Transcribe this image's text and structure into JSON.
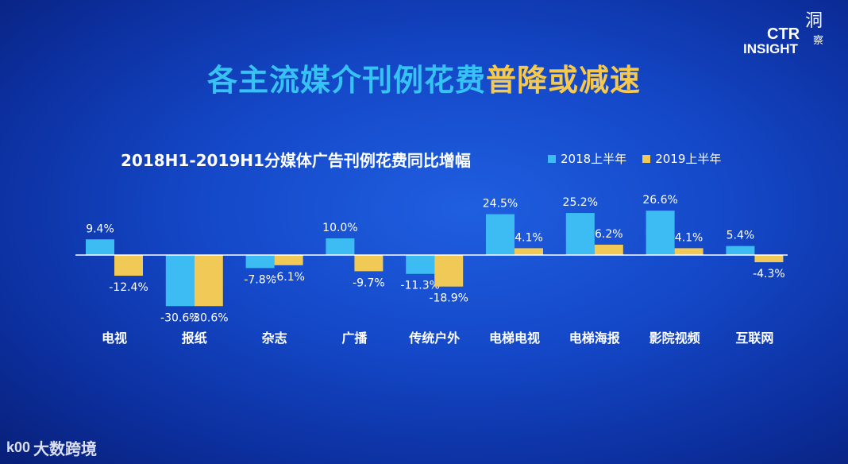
{
  "headline": {
    "part1": "各主流媒介刊例花费",
    "part2": "普降或减速"
  },
  "logo": {
    "line1": "CTR",
    "line2": "INSIGHT",
    "cn_top": "洞",
    "cn_bottom": "察"
  },
  "watermark": {
    "text": "大数跨境",
    "mark": "k00"
  },
  "colors": {
    "s2018": "#3cbcf2",
    "s2019": "#f1c957",
    "axis": "#ffffff"
  },
  "chart_data": {
    "type": "bar",
    "title": "2018H1-2019H1分媒体广告刊例花费同比增幅",
    "categories": [
      "电视",
      "报纸",
      "杂志",
      "广播",
      "传统户外",
      "电梯电视",
      "电梯海报",
      "影院视频",
      "互联网"
    ],
    "series": [
      {
        "name": "2018上半年",
        "values": [
          9.4,
          -30.6,
          -7.8,
          10.0,
          -11.3,
          24.5,
          25.2,
          26.6,
          5.4
        ],
        "labels": [
          "9.4%",
          "-30.6%",
          "-7.8%",
          "10.0%",
          "-11.3%",
          "24.5%",
          "25.2%",
          "26.6%",
          "5.4%"
        ]
      },
      {
        "name": "2019上半年",
        "values": [
          -12.4,
          -30.6,
          -6.1,
          -9.7,
          -18.9,
          4.1,
          6.2,
          4.1,
          -4.3
        ],
        "labels": [
          "-12.4%",
          "-30.6%",
          "-6.1%",
          "-9.7%",
          "-18.9%",
          "4.1%",
          "6.2%",
          "4.1%",
          "-4.3%"
        ]
      }
    ],
    "xlabel": "",
    "ylabel": "",
    "ylim": [
      -31,
      27
    ],
    "grid": false,
    "legend": "top-right"
  }
}
